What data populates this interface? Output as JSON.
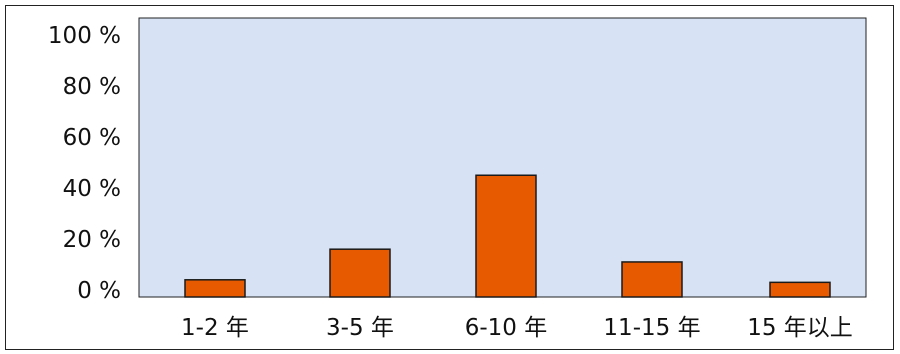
{
  "chart_data": {
    "type": "bar",
    "categories": [
      "1-2 年",
      "3-5 年",
      "6-10 年",
      "11-15 年",
      "15 年以上"
    ],
    "values": [
      4,
      16,
      45,
      11,
      3
    ],
    "title": "",
    "xlabel": "",
    "ylabel": "",
    "ylim": [
      0,
      100
    ],
    "yticks": [
      "0 %",
      "20 %",
      "40 %",
      "60 %",
      "80 %",
      "100 %"
    ],
    "ytick_values": [
      0,
      20,
      40,
      60,
      80,
      100
    ],
    "grid": false,
    "legend": "none",
    "colors": {
      "bar": "#e85a00",
      "bar_edge": "#1a1a1a",
      "plot_background": "#d7e2f4",
      "frame": "#222222"
    }
  }
}
